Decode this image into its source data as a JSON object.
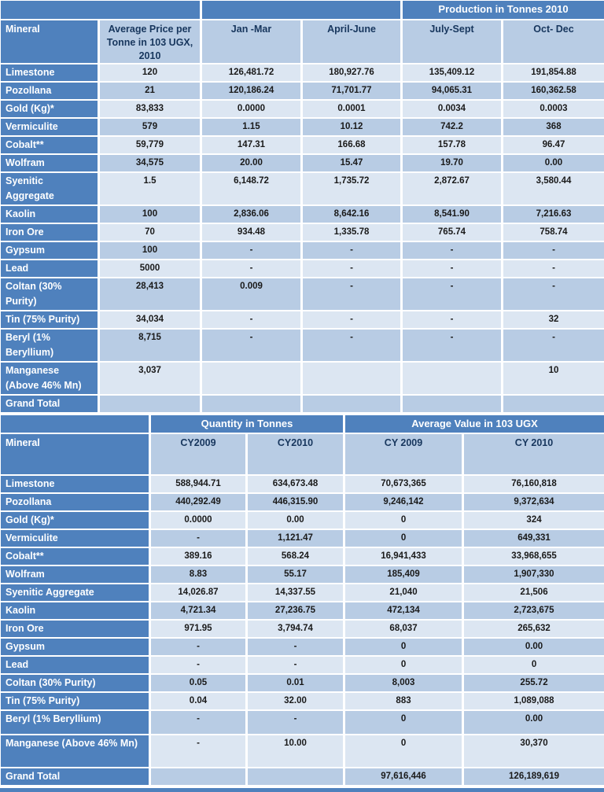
{
  "colors": {
    "header_blue": "#4f81bd",
    "row_light": "#dce6f2",
    "row_medium": "#b8cce4",
    "heading_text": "#17365d",
    "value_text": "#1a1a1a"
  },
  "table1": {
    "band_title": "Production in Tonnes 2010",
    "columns": [
      "Mineral",
      "Average Price per Tonne in 103 UGX, 2010",
      "Jan -Mar",
      "April-June",
      "July-Sept",
      "Oct- Dec"
    ],
    "rows": [
      {
        "label": "Limestone",
        "h": 1,
        "values": [
          "120",
          "126,481.72",
          "180,927.76",
          "135,409.12",
          "191,854.88"
        ]
      },
      {
        "label": "Pozollana",
        "h": 1,
        "values": [
          "21",
          "120,186.24",
          "71,701.77",
          "94,065.31",
          "160,362.58"
        ]
      },
      {
        "label": "Gold (Kg)*",
        "h": 1,
        "values": [
          "83,833",
          "0.0000",
          "0.0001",
          "0.0034",
          "0.0003"
        ]
      },
      {
        "label": "Vermiculite",
        "h": 1,
        "values": [
          "579",
          "1.15",
          "10.12",
          "742.2",
          "368"
        ]
      },
      {
        "label": "Cobalt**",
        "h": 1,
        "values": [
          "59,779",
          "147.31",
          "166.68",
          "157.78",
          "96.47"
        ]
      },
      {
        "label": "Wolfram",
        "h": 1,
        "values": [
          "34,575",
          "20.00",
          "15.47",
          "19.70",
          "0.00"
        ]
      },
      {
        "label": "Syenitic Aggregate",
        "h": 2,
        "values": [
          "1.5",
          "6,148.72",
          "1,735.72",
          "2,872.67",
          "3,580.44"
        ]
      },
      {
        "label": "Kaolin",
        "h": 1,
        "values": [
          "100",
          "2,836.06",
          "8,642.16",
          "8,541.90",
          "7,216.63"
        ]
      },
      {
        "label": "Iron Ore",
        "h": 1,
        "values": [
          "70",
          "934.48",
          "1,335.78",
          "765.74",
          "758.74"
        ]
      },
      {
        "label": "Gypsum",
        "h": 1,
        "values": [
          "100",
          "-",
          "-",
          "-",
          "-"
        ]
      },
      {
        "label": "Lead",
        "h": 1,
        "values": [
          "5000",
          "-",
          "-",
          "-",
          "-"
        ]
      },
      {
        "label": "Coltan (30% Purity)",
        "h": 2,
        "values": [
          "28,413",
          "0.009",
          "-",
          "-",
          "-"
        ]
      },
      {
        "label": "Tin (75% Purity)",
        "h": 1,
        "values": [
          "34,034",
          "-",
          "-",
          "-",
          "32"
        ]
      },
      {
        "label": "Beryl (1% Beryllium)",
        "h": 2,
        "values": [
          "8,715",
          "-",
          "-",
          "-",
          "-"
        ]
      },
      {
        "label": "Manganese (Above 46% Mn)",
        "h": 2,
        "values": [
          "3,037",
          "",
          "",
          "",
          "10"
        ]
      },
      {
        "label": "Grand Total",
        "h": 1,
        "values": [
          "",
          "",
          "",
          "",
          ""
        ]
      }
    ]
  },
  "table2": {
    "band_quantity": "Quantity in Tonnes",
    "band_value": "Average Value in 103 UGX",
    "columns": [
      "Mineral",
      "CY2009",
      "CY2010",
      "CY 2009",
      "CY 2010"
    ],
    "rows": [
      {
        "label": "Limestone",
        "h": 1,
        "values": [
          "588,944.71",
          "634,673.48",
          "70,673,365",
          "76,160,818"
        ]
      },
      {
        "label": "Pozollana",
        "h": 1,
        "values": [
          "440,292.49",
          "446,315.90",
          "9,246,142",
          "9,372,634"
        ]
      },
      {
        "label": "Gold (Kg)*",
        "h": 1,
        "values": [
          "0.0000",
          "0.00",
          "0",
          "324"
        ]
      },
      {
        "label": "Vermiculite",
        "h": 1,
        "values": [
          "-",
          "1,121.47",
          "0",
          "649,331"
        ]
      },
      {
        "label": "Cobalt**",
        "h": 1,
        "values": [
          "389.16",
          "568.24",
          "16,941,433",
          "33,968,655"
        ]
      },
      {
        "label": "Wolfram",
        "h": 1,
        "values": [
          "8.83",
          "55.17",
          "185,409",
          "1,907,330"
        ]
      },
      {
        "label": "Syenitic Aggregate",
        "h": 1,
        "values": [
          "14,026.87",
          "14,337.55",
          "21,040",
          "21,506"
        ]
      },
      {
        "label": "Kaolin",
        "h": 1,
        "values": [
          "4,721.34",
          "27,236.75",
          "472,134",
          "2,723,675"
        ]
      },
      {
        "label": "Iron Ore",
        "h": 1,
        "values": [
          "971.95",
          "3,794.74",
          "68,037",
          "265,632"
        ]
      },
      {
        "label": "Gypsum",
        "h": 1,
        "values": [
          "-",
          "-",
          "0",
          "0.00"
        ]
      },
      {
        "label": "Lead",
        "h": 1,
        "values": [
          "-",
          "-",
          "0",
          "0"
        ]
      },
      {
        "label": "Coltan (30% Purity)",
        "h": 1,
        "values": [
          "0.05",
          "0.01",
          "8,003",
          "255.72"
        ]
      },
      {
        "label": "Tin (75% Purity)",
        "h": 1,
        "values": [
          "0.04",
          "32.00",
          "883",
          "1,089,088"
        ]
      },
      {
        "label": "Beryl (1% Beryllium)",
        "h": 1.5,
        "values": [
          "-",
          "-",
          "0",
          "0.00"
        ]
      },
      {
        "label": "Manganese (Above 46% Mn)",
        "h": 2,
        "values": [
          "-",
          "10.00",
          "0",
          "30,370"
        ]
      },
      {
        "label": "Grand Total",
        "h": 1,
        "values": [
          "",
          "",
          "97,616,446",
          "126,189,619"
        ]
      }
    ]
  }
}
